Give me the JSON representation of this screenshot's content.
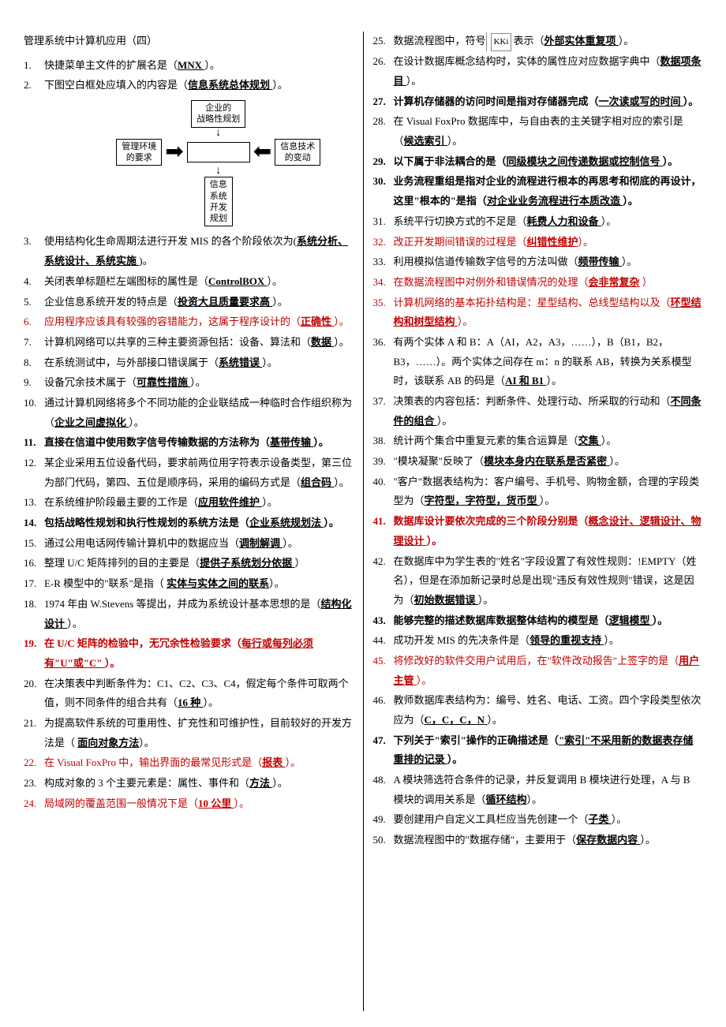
{
  "title": "管理系统中计算机应用（四）",
  "diagram": {
    "top": "企业的\n战略性规划",
    "left": "管理环境\n的要求",
    "right": "信息技术\n的变动",
    "bottom": "信息\n系统\n开发\n规划"
  },
  "symbol_label": "KKi",
  "left_items": [
    {
      "pre": "快捷菜单主文件的扩展名是（",
      "ans": "MNX ",
      "post": "）。"
    },
    {
      "pre": "下图空白框处应填入的内容是（",
      "ans": "信息系统总体规划 ",
      "post": "）。",
      "has_diagram": true
    },
    {
      "pre": "使用结构化生命周期法进行开发 MIS 的各个阶段依次为(",
      "ans": "系统分析、系统设计、系统实施 ",
      "post": ")。"
    },
    {
      "pre": "关闭表单标题栏左端图标的属性是（",
      "ans": "ControlBOX ",
      "post": "）。"
    },
    {
      "pre": "企业信息系统开发的特点是（",
      "ans": "投资大且质量要求高 ",
      "post": "）。"
    },
    {
      "pre": "应用程序应该具有较强的容错能力，这属于程序设计的（",
      "ans": "正确性 ",
      "post": "）。",
      "red": true
    },
    {
      "pre": "计算机网络可以共享的三种主要资源包括：设备、算法和（",
      "ans": "数据 ",
      "post": "）。"
    },
    {
      "pre": "在系统测试中，与外部接口错误属于（",
      "ans": "系统错误 ",
      "post": "）。"
    },
    {
      "pre": "设备冗余技术属于（",
      "ans": "可靠性措施 ",
      "post": "）。"
    },
    {
      "pre": "通过计算机网络将多个不同功能的企业联结成一种临时合作组织称为（",
      "ans": "企业之间虚拟化 ",
      "post": "）。"
    },
    {
      "pre": "直接在信道中使用数字信号传输数据的方法称为（",
      "ans": "基带传输 ",
      "post": "）。",
      "bold": true
    },
    {
      "pre": "某企业采用五位设备代码，要求前两位用字符表示设备类型，第三位为部门代码，第四、五位是顺序码，采用的编码方式是（",
      "ans": "组合码 ",
      "post": "）。"
    },
    {
      "pre": "在系统维护阶段最主要的工作是（",
      "ans": "应用软件维护 ",
      "post": "）。"
    },
    {
      "pre": "包括战略性规划和执行性规划的系统方法是（",
      "ans": "企业系统规划法 ",
      "post": "）。",
      "bold": true
    },
    {
      "pre": "通过公用电话网传输计算机中的数据应当（",
      "ans": "调制解调 ",
      "post": "）。"
    },
    {
      "pre": "整理 U/C 矩阵排列的目的主要是（",
      "ans": "提供子系统划分依据 ",
      "post": "）"
    },
    {
      "pre": "E-R 模型中的\"联系\"是指（ ",
      "ans": "实体与实体之间的联系",
      "post": "）。"
    },
    {
      "pre": "1974 年由 W.Stevens 等提出，并成为系统设计基本思想的是（",
      "ans": "结构化设计 ",
      "post": "）。"
    },
    {
      "pre": "在 U/C 矩阵的检验中，无冗余性检验要求（",
      "ans": "每行或每列必须有\"U\"或\"C\" ",
      "post": "）。",
      "bold": true,
      "red": true
    },
    {
      "pre": "在决策表中判断条件为：C1、C2、C3、C4，假定每个条件可取两个值，则不同条件的组合共有（",
      "ans": "16 种 ",
      "post": "）。"
    },
    {
      "pre": "为提高软件系统的可重用性、扩充性和可维护性，目前较好的开发方法是（ ",
      "ans": "面向对象方法",
      "post": "）。"
    },
    {
      "pre": "在 Visual FoxPro 中，输出界面的最常见形式是（",
      "ans": "报表 ",
      "post": "）。",
      "red": true
    },
    {
      "pre": "构成对象的 3 个主要元素是：属性、事件和（",
      "ans": "方法 ",
      "post": "）。"
    },
    {
      "pre": "局域网的覆盖范围一般情况下是（",
      "ans": "10 公里 ",
      "post": "）。",
      "red": true
    }
  ],
  "right_items": [
    {
      "pre": "数据流程图中，符号",
      "symbol": true,
      "mid": "表示（",
      "ans": "外部实体重复项 ",
      "post": "）。"
    },
    {
      "pre": "在设计数据库概念结构时，实体的属性应对应数据字典中（",
      "ans": "数据项条目 ",
      "post": "）。"
    },
    {
      "pre": "计算机存储器的访问时间是指对存储器完成（",
      "ans": "一次读或写的时间 ",
      "post": "）。",
      "bold": true
    },
    {
      "pre": "在 Visual FoxPro 数据库中，与自由表的主关键字相对应的索引是（",
      "ans": "候选索引 ",
      "post": "）。"
    },
    {
      "pre": "以下属于非法耦合的是（",
      "ans": "同级模块之间传递数据或控制信号 ",
      "post": "）。",
      "bold": true
    },
    {
      "pre": "业务流程重组是指对企业的流程进行根本的再思考和彻底的再设计，这里\"根本的\"是指（",
      "ans": "对企业业务流程进行本质改造 ",
      "post": "）。",
      "bold": true
    },
    {
      "pre": "系统平行切换方式的不足是（",
      "ans": "耗费人力和设备 ",
      "post": "）。"
    },
    {
      "pre": "改正开发期间错误的过程是（",
      "ans": "纠错性维护",
      "post": "）。",
      "red": true
    },
    {
      "pre": "利用模拟信道传输数字信号的方法叫做（",
      "ans": "频带传输 ",
      "post": "）。"
    },
    {
      "pre": "在数据流程图中对例外和错误情况的处理（",
      "ans": "会非常复杂",
      "post": " ）",
      "red": true
    },
    {
      "pre": "计算机网络的基本拓扑结构是：星型结构、总线型结构以及（",
      "ans": "环型结构和树型结构 ",
      "post": "）。",
      "red": true
    },
    {
      "pre": "有两个实体 A 和 B：A（AI，A2，A3，……），B（B1，B2，B3，……）。两个实体之间存在 m：n 的联系 AB，转换为关系模型时，该联系 AB 的码是（",
      "ans": "AI 和 B1 ",
      "post": "）。"
    },
    {
      "pre": "决策表的内容包括：判断条件、处理行动、所采取的行动和（",
      "ans": "不同条件的组合 ",
      "post": "）。"
    },
    {
      "pre": "统计两个集合中重复元素的集合运算是（",
      "ans": "交集 ",
      "post": "）。"
    },
    {
      "pre": "\"模块凝聚\"反映了（",
      "ans": "模块本身内在联系是否紧密 ",
      "post": "）。"
    },
    {
      "pre": "\"客户\"数据表结构为：客户编号、手机号、购物金额，合理的字段类型为（",
      "ans": "字符型，字符型，货币型 ",
      "post": "）。"
    },
    {
      "pre": "数据库设计要依次完成的三个阶段分别是（",
      "ans": "概念设计、逻辑设计、物理设计 ",
      "post": "）。",
      "bold": true,
      "red": true
    },
    {
      "pre": "在数据库中为学生表的\"姓名\"字段设置了有效性规则：!EMPTY（姓名），但是在添加新记录时总是出现\"违反有效性规则\"错误，这是因为（",
      "ans": "初始数据错误 ",
      "post": "）。"
    },
    {
      "pre": "能够完整的描述数据库数据整体结构的模型是（",
      "ans": "逻辑模型 ",
      "post": "）。",
      "bold": true
    },
    {
      "pre": "成功开发 MIS 的先决条件是（",
      "ans": "领导的重视支持 ",
      "post": "）。"
    },
    {
      "pre": "将修改好的软件交用户试用后，在\"软件改动报告\"上签字的是（",
      "ans": "用户主管 ",
      "post": "）。",
      "red": true
    },
    {
      "pre": "教师数据库表结构为：编号、姓名、电话、工资。四个字段类型依次应为（",
      "ans": "C，C，C，N ",
      "post": "）。"
    },
    {
      "pre": "下列关于\"索引\"操作的正确描述是（",
      "ans": "\"索引\"不采用新的数据表存储重排的记录 ",
      "post": "）。",
      "bold": true
    },
    {
      "pre": "A 模块筛选符合条件的记录，并反复调用 B 模块进行处理，A 与 B 模块的调用关系是（",
      "ans": "循环结构",
      "post": "）。"
    },
    {
      "pre": "要创建用户自定义工具栏应当先创建一个（",
      "ans": "子类 ",
      "post": "）。"
    },
    {
      "pre": "数据流程图中的\"数据存储\"，主要用于（",
      "ans": "保存数据内容 ",
      "post": "）。"
    }
  ]
}
